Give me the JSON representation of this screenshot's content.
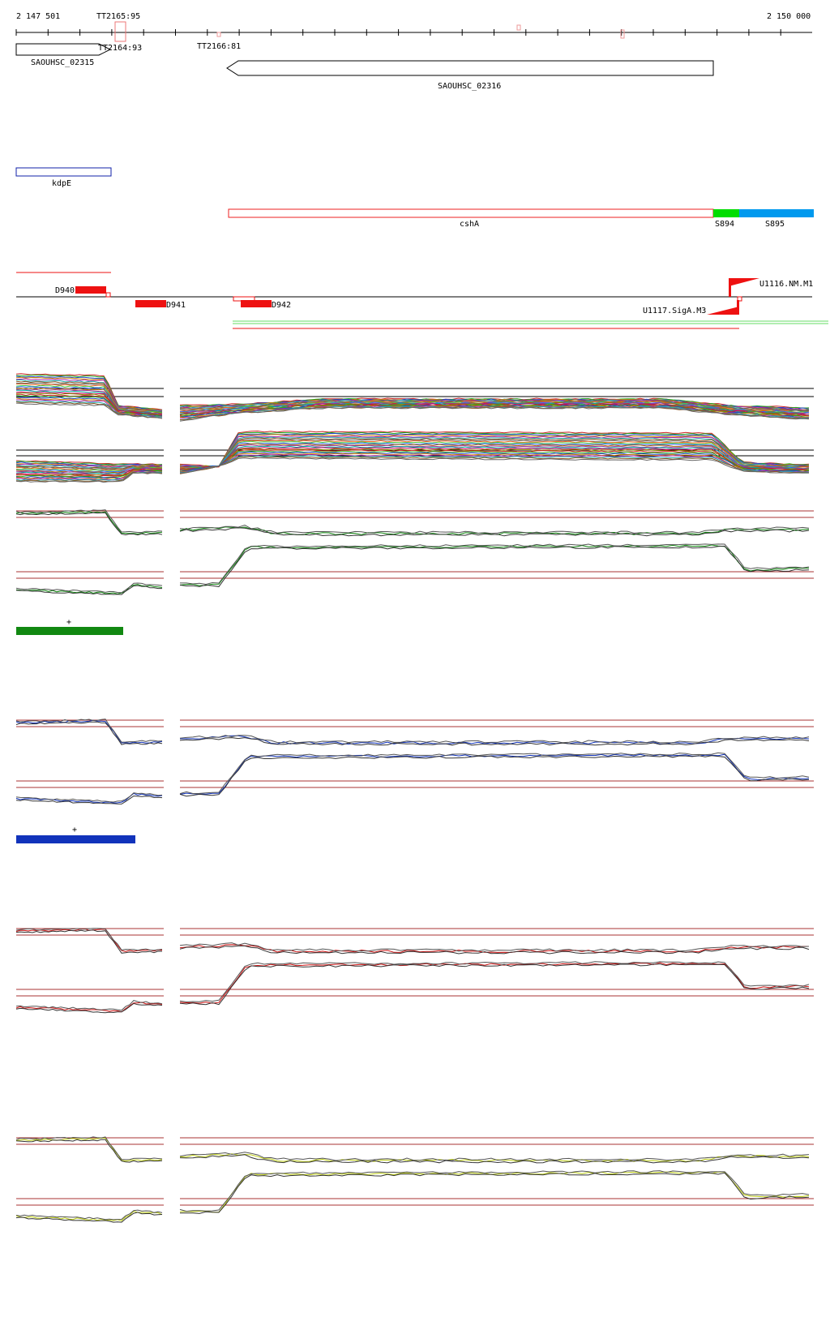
{
  "ruler": {
    "start_label": "2 147 501",
    "end_label": "2 150 000",
    "start_bp": 2147501,
    "end_bp": 2150000
  },
  "terminators": [
    {
      "label": "TT2165:95"
    },
    {
      "label": "TT2164:93"
    },
    {
      "label": "TT2166:81"
    }
  ],
  "genes": [
    {
      "name": "SAOUHSC_02315",
      "strand": "+"
    },
    {
      "name": "SAOUHSC_02316",
      "strand": "-"
    }
  ],
  "operon_label": "kdpE",
  "transcript": {
    "label": "cshA",
    "segments": [
      {
        "label": "S894",
        "color": "#00dd00"
      },
      {
        "label": "S895",
        "color": "#0099ee"
      }
    ],
    "box_color": "#ee2222"
  },
  "elements": [
    {
      "label": "D940"
    },
    {
      "label": "D941"
    },
    {
      "label": "D942"
    },
    {
      "label": "U1116.NM.M1"
    },
    {
      "label": "U1117.SigA.M3"
    }
  ],
  "panels": [
    {
      "id": "multi",
      "series_color": "multicolor"
    },
    {
      "id": "green",
      "series_color": "#118811",
      "marker": "+"
    },
    {
      "id": "blue",
      "series_color": "#1133bb",
      "marker": "+"
    },
    {
      "id": "red",
      "series_color": "#cc1111"
    },
    {
      "id": "yellow",
      "series_color": "#bbcc11"
    }
  ],
  "colors": {
    "axis": "#000000",
    "threshold": "#aa3333",
    "element": "#ee1111",
    "marker_green": "#118811",
    "marker_blue": "#1133bb"
  }
}
